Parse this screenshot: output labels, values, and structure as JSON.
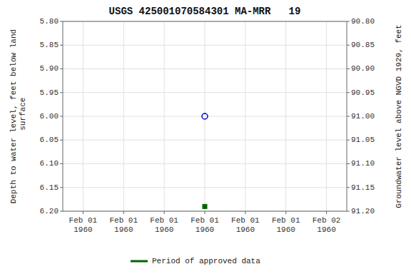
{
  "chart_data": {
    "type": "scatter",
    "title": "USGS 425001070584301 MA-MRR   19",
    "y_label": "Depth to water level, feet below land\n surface",
    "y2_label": "Groundwater level above NGVD 1929, feet",
    "categories": [
      "Feb 01\n1960",
      "Feb 01\n1960",
      "Feb 01\n1960",
      "Feb 01\n1960",
      "Feb 01\n1960",
      "Feb 01\n1960",
      "Feb 02\n1960"
    ],
    "ylim": [
      6.2,
      5.8
    ],
    "yticks": [
      {
        "value": 5.8,
        "label": "5.80"
      },
      5.85,
      {
        "value": 5.9,
        "label": "5.90"
      },
      5.95,
      {
        "value": 6.0,
        "label": "6.00"
      },
      6.05,
      {
        "value": 6.1,
        "label": "6.10"
      },
      6.15,
      {
        "value": 6.2,
        "label": "6.20"
      }
    ],
    "y2lim": [
      91.2,
      90.8
    ],
    "y2ticks": [
      {
        "value": 91.2,
        "label": "91.20"
      },
      91.15,
      {
        "value": 91.1,
        "label": "91.10"
      },
      91.05,
      {
        "value": 91.0,
        "label": "91.00"
      },
      90.95,
      {
        "value": 90.9,
        "label": "90.90"
      },
      90.85,
      {
        "value": 90.8,
        "label": "90.80"
      }
    ],
    "series": [
      {
        "color": "#0000cc",
        "marker": "open-circle",
        "values": [
          null,
          null,
          null,
          6.0,
          null,
          null,
          null
        ]
      },
      {
        "name": "Period of approved data",
        "color": "#006400",
        "marker": "square",
        "values": [
          null,
          null,
          null,
          6.19,
          null,
          null,
          null
        ]
      }
    ],
    "grid": true,
    "legend": "bottom"
  }
}
